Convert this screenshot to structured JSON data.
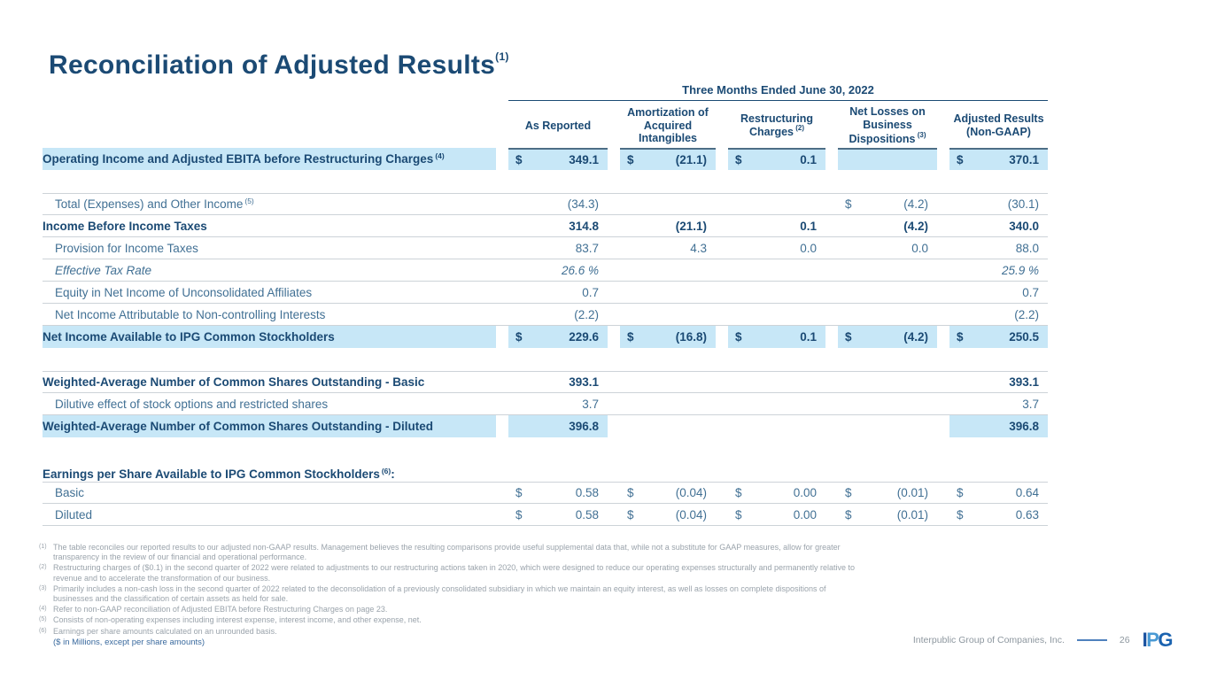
{
  "slide": {
    "title": "Reconciliation of Adjusted Results",
    "title_sup": "(1)",
    "period_header": "Three Months Ended June 30, 2022",
    "units_note": "($ in Millions, except per share amounts)",
    "footer": {
      "company": "Interpublic Group of Companies, Inc.",
      "page": "26",
      "logo_letters": [
        "I",
        "P",
        "G"
      ]
    }
  },
  "columns": [
    {
      "label": "As Reported",
      "sup": ""
    },
    {
      "label": "Amortization of Acquired Intangibles",
      "sup": ""
    },
    {
      "label": "Restructuring Charges",
      "sup": "(2)"
    },
    {
      "label": "Net Losses on Business Dispositions",
      "sup": "(3)"
    },
    {
      "label": "Adjusted Results (Non-GAAP)",
      "sup": ""
    }
  ],
  "rows": [
    {
      "label": "Operating Income and Adjusted EBITA before Restructuring Charges",
      "sup": "(4)",
      "style": "bold",
      "indent": false,
      "label_hl": true,
      "borders": "",
      "spacer_before": 0,
      "cells": [
        {
          "d": "$",
          "v": "349.1",
          "hl": true,
          "tb": true
        },
        {
          "d": "$",
          "v": "(21.1)",
          "hl": true,
          "tb": true
        },
        {
          "d": "$",
          "v": "0.1",
          "hl": true,
          "tb": true
        },
        {
          "d": "",
          "v": "",
          "hl": true,
          "tb": true
        },
        {
          "d": "$",
          "v": "370.1",
          "hl": true,
          "tb": true
        }
      ]
    },
    {
      "label": "Total (Expenses) and Other Income",
      "sup": "(5)",
      "style": "regular",
      "indent": true,
      "label_hl": false,
      "borders": "tb",
      "spacer_before": 26,
      "cells": [
        {
          "d": "",
          "v": "(34.3)"
        },
        null,
        null,
        {
          "d": "$",
          "v": "(4.2)"
        },
        {
          "d": "",
          "v": "(30.1)"
        }
      ]
    },
    {
      "label": "Income Before Income Taxes",
      "sup": "",
      "style": "bold",
      "indent": false,
      "label_hl": false,
      "borders": "b",
      "spacer_before": 0,
      "cells": [
        {
          "d": "",
          "v": "314.8"
        },
        {
          "d": "",
          "v": "(21.1)"
        },
        {
          "d": "",
          "v": "0.1"
        },
        {
          "d": "",
          "v": "(4.2)"
        },
        {
          "d": "",
          "v": "340.0"
        }
      ]
    },
    {
      "label": "Provision for Income Taxes",
      "sup": "",
      "style": "regular",
      "indent": true,
      "label_hl": false,
      "borders": "b",
      "spacer_before": 0,
      "cells": [
        {
          "d": "",
          "v": "83.7"
        },
        {
          "d": "",
          "v": "4.3"
        },
        {
          "d": "",
          "v": "0.0"
        },
        {
          "d": "",
          "v": "0.0"
        },
        {
          "d": "",
          "v": "88.0"
        }
      ]
    },
    {
      "label": "Effective Tax Rate",
      "sup": "",
      "style": "italic",
      "indent": true,
      "label_hl": false,
      "borders": "b",
      "spacer_before": 0,
      "cells": [
        {
          "d": "",
          "v": "26.6 %"
        },
        null,
        null,
        null,
        {
          "d": "",
          "v": "25.9 %"
        }
      ]
    },
    {
      "label": "Equity in Net Income of Unconsolidated Affiliates",
      "sup": "",
      "style": "regular",
      "indent": true,
      "label_hl": false,
      "borders": "b",
      "spacer_before": 0,
      "cells": [
        {
          "d": "",
          "v": "0.7"
        },
        null,
        null,
        null,
        {
          "d": "",
          "v": "0.7"
        }
      ]
    },
    {
      "label": "Net Income Attributable to Non-controlling Interests",
      "sup": "",
      "style": "regular",
      "indent": true,
      "label_hl": false,
      "borders": "b",
      "spacer_before": 0,
      "cells": [
        {
          "d": "",
          "v": "(2.2)"
        },
        null,
        null,
        null,
        {
          "d": "",
          "v": "(2.2)"
        }
      ]
    },
    {
      "label": "Net Income Available to IPG Common Stockholders",
      "sup": "",
      "style": "bold",
      "indent": false,
      "label_hl": true,
      "borders": "",
      "spacer_before": 0,
      "cells": [
        {
          "d": "$",
          "v": "229.6",
          "hl": true
        },
        {
          "d": "$",
          "v": "(16.8)",
          "hl": true
        },
        {
          "d": "$",
          "v": "0.1",
          "hl": true
        },
        {
          "d": "$",
          "v": "(4.2)",
          "hl": true
        },
        {
          "d": "$",
          "v": "250.5",
          "hl": true
        }
      ]
    },
    {
      "label": "Weighted-Average Number of Common Shares Outstanding - Basic",
      "sup": "",
      "style": "bold",
      "indent": false,
      "label_hl": false,
      "borders": "tb",
      "spacer_before": 26,
      "cells": [
        {
          "d": "",
          "v": "393.1"
        },
        null,
        null,
        null,
        {
          "d": "",
          "v": "393.1"
        }
      ]
    },
    {
      "label": "Dilutive effect of stock options and restricted shares",
      "sup": "",
      "style": "regular",
      "indent": true,
      "label_hl": false,
      "borders": "b",
      "spacer_before": 0,
      "cells": [
        {
          "d": "",
          "v": "3.7"
        },
        null,
        null,
        null,
        {
          "d": "",
          "v": "3.7"
        }
      ]
    },
    {
      "label": "Weighted-Average Number of Common Shares Outstanding - Diluted",
      "sup": "",
      "style": "bold",
      "indent": false,
      "label_hl": true,
      "borders": "",
      "spacer_before": 0,
      "cells": [
        {
          "d": "",
          "v": "396.8",
          "hl": true
        },
        null,
        null,
        null,
        {
          "d": "",
          "v": "396.8",
          "hl": true
        }
      ]
    },
    {
      "label": "Earnings per Share Available to IPG Common Stockholders",
      "sup": "(6)",
      "suffix": ":",
      "style": "bold",
      "indent": false,
      "label_hl": false,
      "borders": "",
      "spacer_before": 33,
      "section_head": true,
      "cells": [
        null,
        null,
        null,
        null,
        null
      ]
    },
    {
      "label": "Basic",
      "sup": "",
      "style": "regular",
      "indent": true,
      "label_hl": false,
      "borders": "tb",
      "spacer_before": 0,
      "cells": [
        {
          "d": "$",
          "v": "0.58"
        },
        {
          "d": "$",
          "v": "(0.04)"
        },
        {
          "d": "$",
          "v": "0.00"
        },
        {
          "d": "$",
          "v": "(0.01)"
        },
        {
          "d": "$",
          "v": "0.64"
        }
      ]
    },
    {
      "label": "Diluted",
      "sup": "",
      "style": "regular",
      "indent": true,
      "label_hl": false,
      "borders": "b",
      "spacer_before": 0,
      "cells": [
        {
          "d": "$",
          "v": "0.58"
        },
        {
          "d": "$",
          "v": "(0.04)"
        },
        {
          "d": "$",
          "v": "0.00"
        },
        {
          "d": "$",
          "v": "(0.01)"
        },
        {
          "d": "$",
          "v": "0.63"
        }
      ]
    }
  ],
  "footnotes": [
    {
      "sup": "(1)",
      "text": "The table reconciles our reported results to our adjusted non-GAAP results. Management believes the resulting comparisons provide useful supplemental data that, while not a substitute for GAAP measures, allow for greater transparency in the review of our financial and operational performance."
    },
    {
      "sup": "(2)",
      "text": "Restructuring charges of ($0.1) in the second quarter of 2022 were related to adjustments to our restructuring actions taken in 2020, which were designed to reduce our operating expenses structurally and permanently relative to revenue and to accelerate the transformation of our business."
    },
    {
      "sup": "(3)",
      "text": "Primarily includes a non-cash loss in the second quarter of 2022 related to the deconsolidation of a previously consolidated subsidiary in which we maintain an equity interest, as well as losses on complete dispositions of businesses and the classification of certain assets as held for sale."
    },
    {
      "sup": "(4)",
      "text": "Refer to non-GAAP reconciliation of Adjusted EBITA before Restructuring Charges on page 23."
    },
    {
      "sup": "(5)",
      "text": "Consists of non-operating expenses including interest expense, interest income, and other expense, net."
    },
    {
      "sup": "(6)",
      "text": "Earnings per share amounts calculated on an unrounded basis."
    }
  ]
}
